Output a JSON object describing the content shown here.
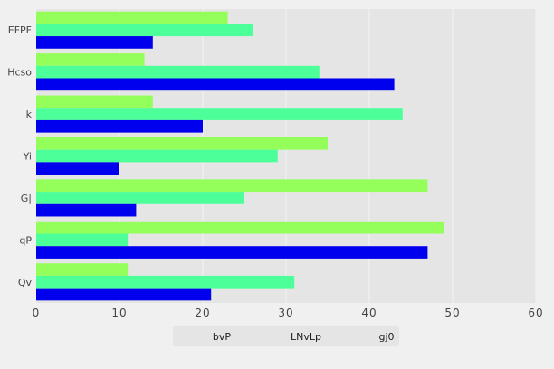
{
  "chart_data": {
    "type": "bar",
    "orientation": "horizontal",
    "categories": [
      "EFPF",
      "Hcso",
      "k",
      "Yi",
      "G|",
      "qP",
      "Qv"
    ],
    "series": [
      {
        "name": "bvP",
        "color": "#0000ee",
        "values": [
          14,
          43,
          20,
          10,
          12,
          47,
          21
        ]
      },
      {
        "name": "LNvLp",
        "color": "#4dff99",
        "values": [
          26,
          34,
          44,
          29,
          25,
          11,
          31
        ]
      },
      {
        "name": "gj0",
        "color": "#94ff5a",
        "values": [
          23,
          13,
          14,
          35,
          47,
          49,
          11
        ]
      }
    ],
    "xlim": [
      0,
      60
    ],
    "xticks": [
      0,
      10,
      20,
      30,
      40,
      50,
      60
    ],
    "grid": true,
    "legend_position": "bottom-center",
    "plot_background": "#e5e5e5",
    "page_background": "#f0f0f0"
  }
}
